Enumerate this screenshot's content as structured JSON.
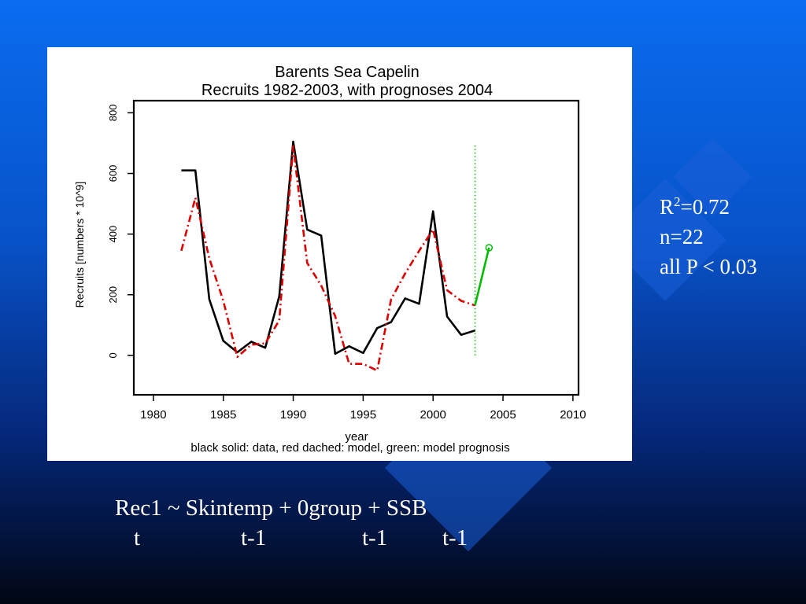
{
  "slide": {
    "stats": {
      "r2_label": "R",
      "r2_sup": "2",
      "r2_value": "=0.72",
      "n": "n=22",
      "p": "all P < 0.03"
    },
    "formula": {
      "main": "Rec1 ~ Skintemp + 0group + SSB",
      "subs": [
        "t",
        "t-1",
        "t-1",
        "t-1"
      ]
    },
    "colors": {
      "background_top": "#0a6cf0",
      "background_bottom": "#010614",
      "text": "#ffffff"
    }
  },
  "chart_data": {
    "type": "line",
    "title": "Barents Sea Capelin",
    "subtitle": "Recruits 1982-2003, with prognoses 2004",
    "xlabel": "year",
    "ylabel": "Recruits [numbers * 10^9]",
    "caption": "black solid: data, red dached: model, green: model prognosis",
    "xlim": [
      1978.6,
      2010.4
    ],
    "ylim": [
      -130,
      840
    ],
    "xticks": [
      1980,
      1985,
      1990,
      1995,
      2000,
      2005,
      2010
    ],
    "yticks": [
      0,
      200,
      400,
      600,
      800
    ],
    "series": [
      {
        "style": "solid",
        "color": "#000000",
        "x": [
          1982,
          1983,
          1984,
          1985,
          1986,
          1987,
          1988,
          1989,
          1990,
          1991,
          1992,
          1993,
          1994,
          1995,
          1996,
          1997,
          1998,
          1999,
          2000,
          2001,
          2002,
          2003
        ],
        "y": [
          610,
          610,
          185,
          48,
          10,
          45,
          25,
          195,
          705,
          415,
          395,
          5,
          30,
          8,
          90,
          110,
          188,
          170,
          475,
          128,
          68,
          82
        ]
      },
      {
        "style": "dash-dot",
        "color": "#dd0000",
        "x": [
          1982,
          1983,
          1984,
          1985,
          1986,
          1987,
          1988,
          1989,
          1990,
          1991,
          1992,
          1993,
          1994,
          1995,
          1996,
          1997,
          1998,
          1999,
          2000,
          2001,
          2002,
          2003
        ],
        "y": [
          345,
          520,
          320,
          180,
          -5,
          35,
          40,
          115,
          690,
          305,
          230,
          130,
          -28,
          -28,
          -50,
          185,
          270,
          345,
          415,
          215,
          180,
          165
        ]
      },
      {
        "style": "solid",
        "color": "#00bb00",
        "x": [
          2003,
          2004
        ],
        "y": [
          165,
          355
        ]
      }
    ],
    "annotations": [
      {
        "type": "vline",
        "x": 2003,
        "y_range": [
          0,
          700
        ],
        "style": "dotted",
        "color": "#00bb00"
      },
      {
        "type": "point",
        "x": 2004,
        "y": 355,
        "marker": "open-circle",
        "color": "#00bb00"
      }
    ],
    "grid": false,
    "legend": "none"
  }
}
